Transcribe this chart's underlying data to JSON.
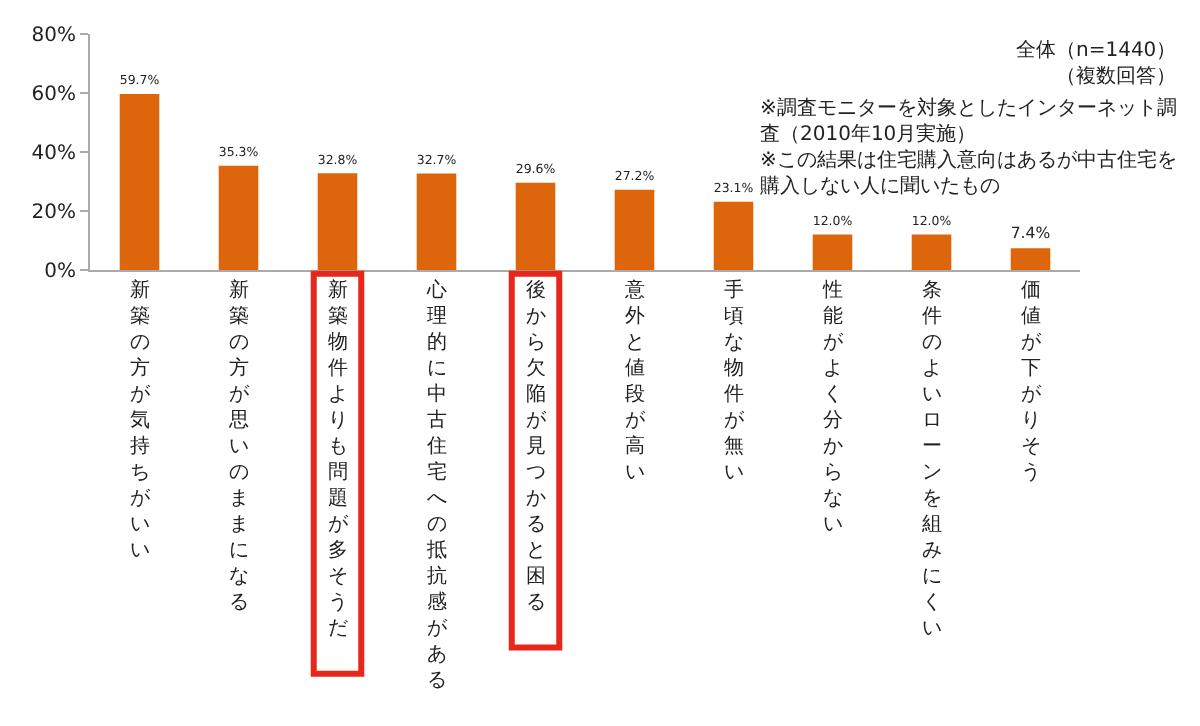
{
  "chart_data": {
    "type": "bar",
    "categories": [
      "新築の方が気持ちがいい",
      "新築の方が思いのままになる",
      "新築物件よりも問題が多そうだ",
      "心理的に中古住宅への抵抗感がある",
      "後から欠陥が見つかると困る",
      "意外と値段が高い",
      "手頃な物件が無い",
      "性能がよく分からない",
      "条件のよいローンを組みにくい",
      "価値が下がりそう"
    ],
    "values": [
      59.7,
      35.3,
      32.8,
      32.7,
      29.6,
      27.2,
      23.1,
      12.0,
      12.0,
      7.4
    ],
    "value_labels": [
      "59.7%",
      "35.3%",
      "32.8%",
      "32.7%",
      "29.6%",
      "27.2%",
      "23.1%",
      "12.0%",
      "12.0%",
      "7.4%"
    ],
    "color": "#dd660c",
    "ylim": [
      0,
      80
    ],
    "yticks": [
      {
        "value": 0,
        "label": "0%"
      },
      {
        "value": 20,
        "label": "20%"
      },
      {
        "value": 40,
        "label": "40%"
      },
      {
        "value": 60,
        "label": "60%"
      },
      {
        "value": 80,
        "label": "80%"
      }
    ],
    "grid": false,
    "legend": false,
    "annotations": [
      "全体（n=1440）",
      "（複数回答）",
      "※調査モニターを対象としたインターネット調査（2010年10月実施）",
      "※この結果は住宅購入意向はあるが中古住宅を購入しない人に聞いたもの"
    ]
  }
}
